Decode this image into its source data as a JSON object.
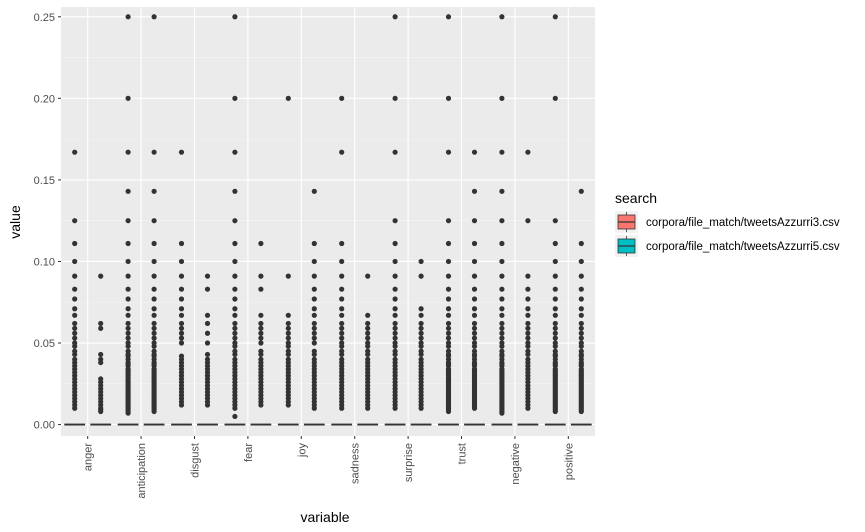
{
  "chart_data": {
    "type": "box",
    "title": "",
    "xlabel": "variable",
    "ylabel": "value",
    "ylim": [
      -0.007,
      0.256
    ],
    "yticks": [
      0.0,
      0.05,
      0.1,
      0.15,
      0.2,
      0.25
    ],
    "ytick_labels": [
      "0.00",
      "0.05",
      "0.10",
      "0.15",
      "0.20",
      "0.25"
    ],
    "categories": [
      "anger",
      "anticipation",
      "disgust",
      "fear",
      "joy",
      "sadness",
      "surprise",
      "trust",
      "negative",
      "positive"
    ],
    "legend": {
      "title": "search",
      "placement": "right"
    },
    "colors": {
      "panel": "#ebebeb",
      "grid": "#ffffff",
      "points": "#333333",
      "box_line": "#333333"
    },
    "series": [
      {
        "name": "corpora/file_match/tweetsAzzurri3.csv",
        "color": "#f8766d",
        "median": [
          0,
          0,
          0,
          0,
          0,
          0,
          0,
          0,
          0,
          0
        ],
        "q1": [
          0,
          0,
          0,
          0,
          0,
          0,
          0,
          0,
          0,
          0
        ],
        "q3": [
          0,
          0,
          0,
          0,
          0,
          0,
          0,
          0,
          0,
          0
        ],
        "outliers": [
          [
            0.167,
            0.125,
            0.111,
            0.1,
            0.091,
            0.083,
            0.077,
            0.071,
            0.067,
            0.062,
            0.059,
            0.056,
            0.053,
            0.05,
            0.048,
            0.045,
            0.043,
            0.04,
            0.038,
            0.036,
            0.034,
            0.032,
            0.03,
            0.028,
            0.026,
            0.024,
            0.022,
            0.02,
            0.018,
            0.016,
            0.014,
            0.012,
            0.01
          ],
          [
            0.25,
            0.2,
            0.167,
            0.143,
            0.125,
            0.111,
            0.1,
            0.091,
            0.083,
            0.077,
            0.071,
            0.067,
            0.062,
            0.059,
            0.056,
            0.053,
            0.05,
            0.048,
            0.045,
            0.043,
            0.042,
            0.04,
            0.038,
            0.037,
            0.036,
            0.034,
            0.033,
            0.032,
            0.031,
            0.03,
            0.029,
            0.028,
            0.027,
            0.026,
            0.025,
            0.024,
            0.023,
            0.022,
            0.021,
            0.02,
            0.019,
            0.018,
            0.017,
            0.016,
            0.015,
            0.014,
            0.013,
            0.012,
            0.011,
            0.01,
            0.009,
            0.008,
            0.007
          ],
          [
            0.167,
            0.111,
            0.1,
            0.091,
            0.083,
            0.077,
            0.071,
            0.067,
            0.062,
            0.059,
            0.056,
            0.053,
            0.05,
            0.042,
            0.04,
            0.038,
            0.036,
            0.034,
            0.032,
            0.03,
            0.028,
            0.026,
            0.024,
            0.022,
            0.02,
            0.018,
            0.016,
            0.014,
            0.012
          ],
          [
            0.25,
            0.2,
            0.167,
            0.143,
            0.125,
            0.111,
            0.1,
            0.091,
            0.083,
            0.077,
            0.071,
            0.067,
            0.062,
            0.059,
            0.056,
            0.053,
            0.05,
            0.048,
            0.045,
            0.043,
            0.04,
            0.038,
            0.036,
            0.034,
            0.032,
            0.03,
            0.028,
            0.026,
            0.024,
            0.022,
            0.02,
            0.018,
            0.016,
            0.014,
            0.012,
            0.01,
            0.005
          ],
          [
            0.2,
            0.091,
            0.067,
            0.062,
            0.059,
            0.056,
            0.053,
            0.05,
            0.048,
            0.045,
            0.043,
            0.04,
            0.038,
            0.036,
            0.034,
            0.032,
            0.03,
            0.028,
            0.026,
            0.024,
            0.022,
            0.02,
            0.018,
            0.016,
            0.014,
            0.012
          ],
          [
            0.2,
            0.167,
            0.111,
            0.1,
            0.091,
            0.083,
            0.077,
            0.071,
            0.067,
            0.062,
            0.059,
            0.056,
            0.053,
            0.05,
            0.048,
            0.045,
            0.043,
            0.04,
            0.038,
            0.036,
            0.034,
            0.032,
            0.03,
            0.028,
            0.026,
            0.024,
            0.022,
            0.02,
            0.018,
            0.016,
            0.014,
            0.012,
            0.01
          ],
          [
            0.25,
            0.2,
            0.167,
            0.125,
            0.111,
            0.1,
            0.091,
            0.083,
            0.077,
            0.071,
            0.067,
            0.062,
            0.059,
            0.056,
            0.053,
            0.05,
            0.048,
            0.045,
            0.043,
            0.04,
            0.038,
            0.036,
            0.034,
            0.032,
            0.03,
            0.028,
            0.026,
            0.024,
            0.022,
            0.02,
            0.018,
            0.016,
            0.014,
            0.012,
            0.01
          ],
          [
            0.25,
            0.2,
            0.167,
            0.125,
            0.111,
            0.1,
            0.091,
            0.083,
            0.077,
            0.071,
            0.067,
            0.062,
            0.059,
            0.056,
            0.053,
            0.05,
            0.048,
            0.045,
            0.043,
            0.042,
            0.04,
            0.038,
            0.037,
            0.036,
            0.034,
            0.033,
            0.032,
            0.031,
            0.03,
            0.029,
            0.028,
            0.027,
            0.026,
            0.025,
            0.024,
            0.023,
            0.022,
            0.021,
            0.02,
            0.019,
            0.018,
            0.017,
            0.016,
            0.015,
            0.014,
            0.013,
            0.012,
            0.011,
            0.01,
            0.009,
            0.008
          ],
          [
            0.25,
            0.2,
            0.167,
            0.143,
            0.125,
            0.111,
            0.1,
            0.091,
            0.083,
            0.077,
            0.071,
            0.067,
            0.062,
            0.059,
            0.056,
            0.053,
            0.05,
            0.048,
            0.045,
            0.043,
            0.042,
            0.04,
            0.038,
            0.037,
            0.036,
            0.034,
            0.033,
            0.032,
            0.031,
            0.03,
            0.029,
            0.028,
            0.027,
            0.026,
            0.025,
            0.024,
            0.023,
            0.022,
            0.021,
            0.02,
            0.019,
            0.018,
            0.017,
            0.016,
            0.015,
            0.014,
            0.013,
            0.012,
            0.011,
            0.01,
            0.009,
            0.008,
            0.007
          ],
          [
            0.25,
            0.2,
            0.125,
            0.111,
            0.1,
            0.091,
            0.083,
            0.077,
            0.071,
            0.067,
            0.062,
            0.059,
            0.056,
            0.053,
            0.05,
            0.048,
            0.045,
            0.043,
            0.042,
            0.04,
            0.038,
            0.037,
            0.036,
            0.034,
            0.033,
            0.032,
            0.031,
            0.03,
            0.029,
            0.028,
            0.027,
            0.026,
            0.025,
            0.024,
            0.023,
            0.022,
            0.021,
            0.02,
            0.019,
            0.018,
            0.017,
            0.016,
            0.015,
            0.014,
            0.013,
            0.012,
            0.011,
            0.01,
            0.009,
            0.008
          ]
        ]
      },
      {
        "name": "corpora/file_match/tweetsAzzurri5.csv",
        "color": "#00bfc4",
        "median": [
          0,
          0,
          0,
          0,
          0,
          0,
          0,
          0,
          0,
          0
        ],
        "q1": [
          0,
          0,
          0,
          0,
          0,
          0,
          0,
          0,
          0,
          0
        ],
        "q3": [
          0,
          0,
          0,
          0,
          0,
          0,
          0,
          0,
          0,
          0
        ],
        "outliers": [
          [
            0.091,
            0.062,
            0.059,
            0.043,
            0.04,
            0.038,
            0.028,
            0.026,
            0.024,
            0.022,
            0.02,
            0.018,
            0.016,
            0.014,
            0.012,
            0.01,
            0.009,
            0.008
          ],
          [
            0.25,
            0.167,
            0.143,
            0.125,
            0.111,
            0.1,
            0.091,
            0.083,
            0.077,
            0.071,
            0.067,
            0.062,
            0.059,
            0.056,
            0.053,
            0.05,
            0.048,
            0.045,
            0.043,
            0.042,
            0.04,
            0.038,
            0.037,
            0.036,
            0.034,
            0.033,
            0.032,
            0.031,
            0.03,
            0.029,
            0.028,
            0.027,
            0.026,
            0.025,
            0.024,
            0.023,
            0.022,
            0.021,
            0.02,
            0.019,
            0.018,
            0.017,
            0.016,
            0.015,
            0.014,
            0.013,
            0.012,
            0.011,
            0.01,
            0.009,
            0.008
          ],
          [
            0.091,
            0.083,
            0.067,
            0.062,
            0.056,
            0.05,
            0.043,
            0.04,
            0.038,
            0.036,
            0.034,
            0.032,
            0.03,
            0.028,
            0.026,
            0.024,
            0.022,
            0.02,
            0.018,
            0.016,
            0.014,
            0.012
          ],
          [
            0.111,
            0.091,
            0.083,
            0.067,
            0.062,
            0.059,
            0.056,
            0.053,
            0.05,
            0.045,
            0.043,
            0.04,
            0.038,
            0.036,
            0.034,
            0.032,
            0.03,
            0.028,
            0.026,
            0.024,
            0.022,
            0.02,
            0.018,
            0.016,
            0.014,
            0.012
          ],
          [
            0.143,
            0.111,
            0.1,
            0.091,
            0.083,
            0.077,
            0.071,
            0.067,
            0.062,
            0.059,
            0.056,
            0.053,
            0.05,
            0.045,
            0.043,
            0.04,
            0.038,
            0.036,
            0.034,
            0.032,
            0.03,
            0.028,
            0.026,
            0.024,
            0.022,
            0.02,
            0.018,
            0.016,
            0.014,
            0.012,
            0.01
          ],
          [
            0.091,
            0.067,
            0.062,
            0.059,
            0.056,
            0.053,
            0.05,
            0.048,
            0.045,
            0.043,
            0.04,
            0.038,
            0.036,
            0.034,
            0.032,
            0.03,
            0.028,
            0.026,
            0.024,
            0.022,
            0.02,
            0.018,
            0.016,
            0.014,
            0.012,
            0.01
          ],
          [
            0.1,
            0.091,
            0.071,
            0.067,
            0.062,
            0.059,
            0.056,
            0.053,
            0.05,
            0.048,
            0.045,
            0.043,
            0.04,
            0.038,
            0.036,
            0.034,
            0.032,
            0.03,
            0.028,
            0.026,
            0.024,
            0.022,
            0.02,
            0.018,
            0.016,
            0.014,
            0.012,
            0.01
          ],
          [
            0.167,
            0.143,
            0.125,
            0.111,
            0.1,
            0.091,
            0.083,
            0.077,
            0.071,
            0.067,
            0.062,
            0.059,
            0.056,
            0.053,
            0.05,
            0.048,
            0.045,
            0.043,
            0.042,
            0.04,
            0.038,
            0.037,
            0.036,
            0.034,
            0.033,
            0.032,
            0.031,
            0.03,
            0.029,
            0.028,
            0.027,
            0.026,
            0.025,
            0.024,
            0.023,
            0.022,
            0.021,
            0.02,
            0.019,
            0.018,
            0.017,
            0.016,
            0.015,
            0.014,
            0.013,
            0.012,
            0.011,
            0.01
          ],
          [
            0.167,
            0.125,
            0.091,
            0.083,
            0.077,
            0.071,
            0.067,
            0.062,
            0.059,
            0.056,
            0.053,
            0.05,
            0.048,
            0.045,
            0.043,
            0.04,
            0.038,
            0.036,
            0.034,
            0.032,
            0.03,
            0.028,
            0.026,
            0.024,
            0.022,
            0.02,
            0.018,
            0.016,
            0.014,
            0.012,
            0.01
          ],
          [
            0.143,
            0.111,
            0.1,
            0.091,
            0.083,
            0.077,
            0.071,
            0.067,
            0.062,
            0.059,
            0.056,
            0.053,
            0.05,
            0.048,
            0.045,
            0.043,
            0.042,
            0.04,
            0.038,
            0.037,
            0.036,
            0.034,
            0.033,
            0.032,
            0.031,
            0.03,
            0.029,
            0.028,
            0.027,
            0.026,
            0.025,
            0.024,
            0.023,
            0.022,
            0.021,
            0.02,
            0.019,
            0.018,
            0.017,
            0.016,
            0.015,
            0.014,
            0.013,
            0.012,
            0.011,
            0.01,
            0.009,
            0.008
          ]
        ]
      }
    ]
  }
}
